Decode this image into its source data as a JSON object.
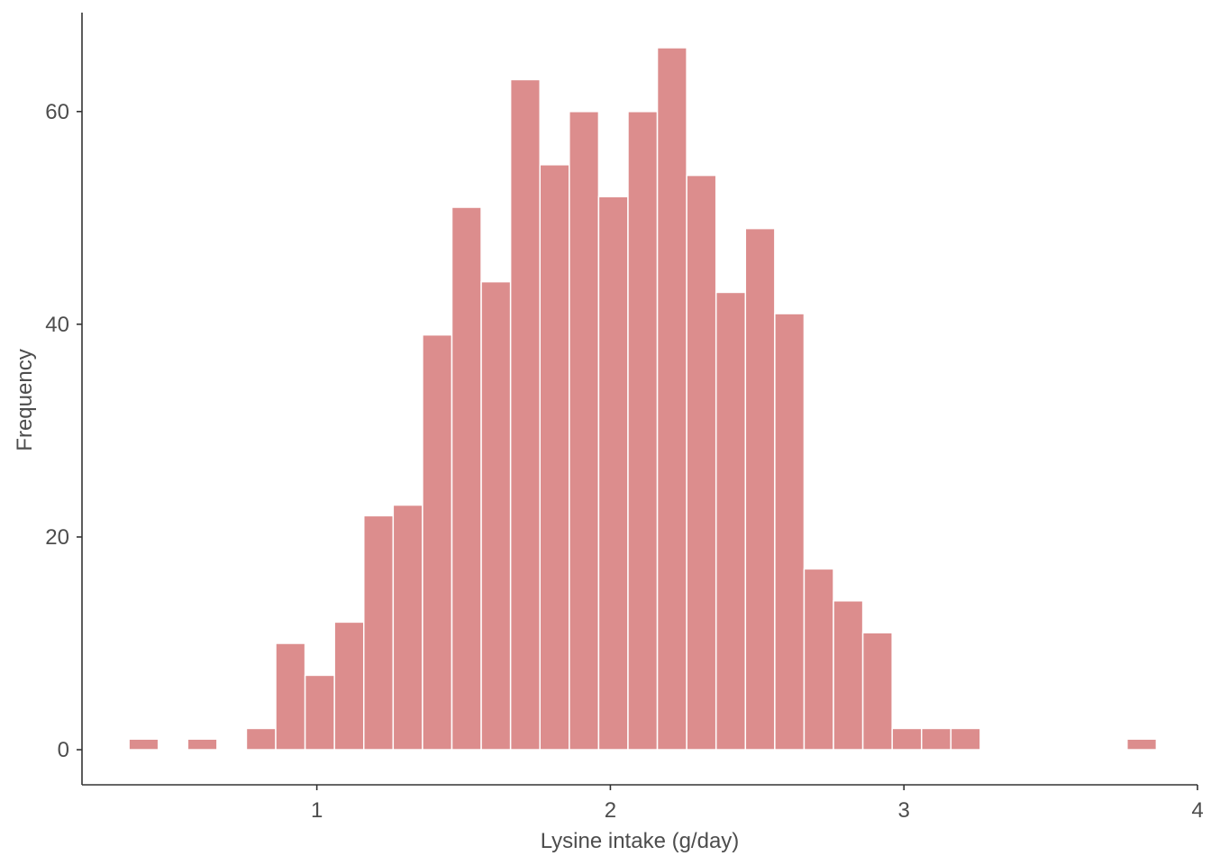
{
  "chart_data": {
    "type": "bar",
    "title": "",
    "xlabel": "Lysine intake (g/day)",
    "ylabel": "Frequency",
    "xlim": [
      0.2,
      4.0
    ],
    "ylim": [
      -3.3,
      69.3
    ],
    "x_ticks": [
      1,
      2,
      3,
      4
    ],
    "y_ticks": [
      0,
      20,
      40,
      60
    ],
    "bin_width": 0.1,
    "bin_start": 0.36,
    "counts": [
      1,
      0,
      1,
      0,
      2,
      10,
      7,
      12,
      22,
      23,
      39,
      51,
      44,
      63,
      55,
      60,
      52,
      60,
      66,
      54,
      43,
      49,
      41,
      17,
      14,
      11,
      2,
      2,
      2,
      0,
      0,
      0,
      0,
      0,
      1
    ],
    "bar_color": "#dc8d8d",
    "grid": false
  }
}
